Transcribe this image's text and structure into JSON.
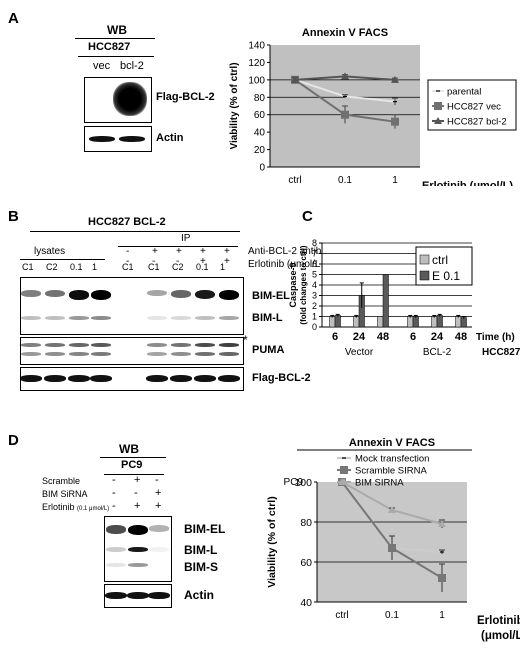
{
  "panelA": {
    "letter": "A",
    "wb": "WB",
    "cell": "HCC827",
    "lane_vec": "vec",
    "lane_bcl2": "bcl-2",
    "label_flag": "Flag-BCL-2",
    "label_actin": "Actin"
  },
  "panelB": {
    "letter": "B",
    "title": "HCC827 BCL-2",
    "lysates": "lysates",
    "ip": "IP",
    "lanes": [
      "C1",
      "C2",
      "0.1",
      "1",
      "C1",
      "C1",
      "C2",
      "0.1",
      "1"
    ],
    "antibody_label": "Anti-BCL-2 antibody",
    "antibody_row": [
      "-",
      "+",
      "+",
      "+",
      "+"
    ],
    "erlotinib_label": "Erlotinib (μmol/L, 48 h)",
    "erlotinib_row": [
      "-",
      "-",
      "-",
      "+",
      "+"
    ],
    "bands": [
      "BIM-EL",
      "BIM-L",
      "PUMA",
      "Flag-BCL-2"
    ],
    "asterisk": "*"
  },
  "panelC": {
    "letter": "C"
  },
  "panelD": {
    "letter": "D",
    "wb": "WB",
    "cell": "PC9",
    "rows": [
      {
        "label": "Scramble",
        "vals": [
          "-",
          "+",
          "-"
        ]
      },
      {
        "label": "BIM SiRNA",
        "vals": [
          "-",
          "-",
          "+"
        ]
      },
      {
        "label": "Erlotinib",
        "unit": "(0.1 μmol/L)",
        "vals": [
          "-",
          "+",
          "+"
        ]
      }
    ],
    "bands": [
      "BIM-EL",
      "BIM-L",
      "BIM-S",
      "Actin"
    ]
  },
  "chart_data": [
    {
      "type": "line",
      "title": "Annexin V FACS",
      "xlabel": "Erlotinib (μmol/L)",
      "ylabel": "Viability (% of ctrl)",
      "categories": [
        "ctrl",
        "0.1",
        "1"
      ],
      "ylim": [
        0,
        140
      ],
      "yticks": [
        0,
        20,
        40,
        60,
        80,
        100,
        120,
        140
      ],
      "legend": "right",
      "series": [
        {
          "name": "parental",
          "values": [
            100,
            81,
            75
          ],
          "err": [
            0,
            2,
            4
          ],
          "color": "#e6e6e6"
        },
        {
          "name": "HCC827 vec",
          "values": [
            100,
            60,
            52
          ],
          "err": [
            3,
            10,
            8
          ],
          "color": "#707070"
        },
        {
          "name": "HCC827 bcl-2",
          "values": [
            100,
            104,
            100
          ],
          "err": [
            3,
            2,
            2
          ],
          "color": "#555555"
        }
      ]
    },
    {
      "type": "bar",
      "ylabel": "Caspase-9 (fold changes to ctrl)",
      "ylim": [
        0,
        8
      ],
      "yticks": [
        0,
        1,
        2,
        3,
        4,
        5,
        6,
        7,
        8
      ],
      "categories": [
        "6",
        "24",
        "48",
        "6",
        "24",
        "48"
      ],
      "groups": [
        "Vector",
        "BCL-2"
      ],
      "x_unit": "Time (h)",
      "cell_line": "HCC827",
      "legend": "top-right",
      "series": [
        {
          "name": "ctrl",
          "values": [
            1,
            1,
            1,
            1,
            1,
            1
          ],
          "err": [
            0.1,
            0.1,
            0,
            0.1,
            0.1,
            0.1
          ],
          "color": "#bfbfbf"
        },
        {
          "name": "E 0.1",
          "values": [
            1.1,
            3,
            5,
            1,
            1.1,
            0.9
          ],
          "err": [
            0.1,
            1.2,
            0,
            0.1,
            0.1,
            0.1
          ],
          "color": "#5a5a5a"
        }
      ]
    },
    {
      "type": "line",
      "title": "Annexin V FACS",
      "cell_line": "PC9",
      "xlabel": "Erlotinib (μmol/L)",
      "ylabel": "Viability (% of ctrl)",
      "categories": [
        "ctrl",
        "0.1",
        "1"
      ],
      "ylim": [
        40,
        100
      ],
      "yticks": [
        40,
        60,
        80,
        100
      ],
      "legend": "top",
      "series": [
        {
          "name": "Mock transfection",
          "values": [
            100,
            67,
            65
          ],
          "err": [
            0,
            0,
            1
          ],
          "color": "#cccccc"
        },
        {
          "name": "Scramble SIRNA",
          "values": [
            100,
            67,
            52
          ],
          "err": [
            0,
            6,
            7
          ],
          "color": "#777777"
        },
        {
          "name": "BIM SIRNA",
          "values": [
            100,
            86,
            79
          ],
          "err": [
            0,
            1,
            2
          ],
          "color": "#aaaaaa"
        }
      ]
    }
  ]
}
